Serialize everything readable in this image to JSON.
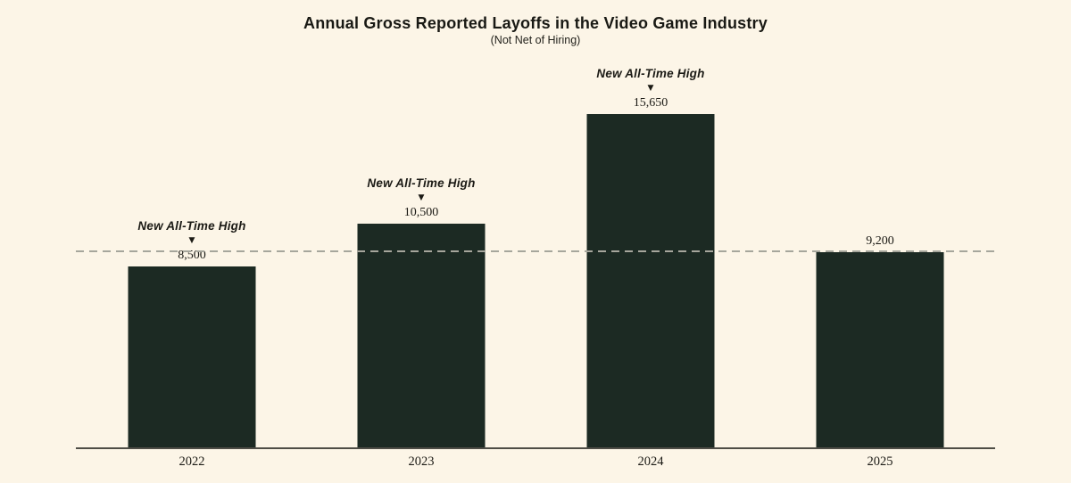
{
  "page": {
    "background_color": "#fcf5e7"
  },
  "header": {
    "title": "Annual Gross Reported Layoffs in the Video Game Industry",
    "subtitle": "(Not Net of Hiring)"
  },
  "chart_data": {
    "type": "bar",
    "title": "Annual Gross Reported Layoffs in the Video Game Industry",
    "subtitle": "(Not Net of Hiring)",
    "categories": [
      "2022",
      "2023",
      "2024",
      "2025"
    ],
    "values": [
      8500,
      10500,
      15650,
      9200
    ],
    "value_labels": [
      "8,500",
      "10,500",
      "15,650",
      "9,200"
    ],
    "new_all_time_high_flags": [
      true,
      true,
      true,
      false
    ],
    "annotation_label": "New All-Time High",
    "annotation_marker": "▼",
    "reference_line": {
      "value": 9200,
      "style": "dashed"
    },
    "ylim": [
      0,
      16500
    ],
    "xlabel": "",
    "ylabel": "",
    "grid": false,
    "legend": false,
    "bar_color": "#1c2a23",
    "axis_color": "#4e4d46",
    "reference_line_color": "#a6a69c",
    "text_color": "#1b1a15",
    "background_color": "#fcf5e7"
  }
}
